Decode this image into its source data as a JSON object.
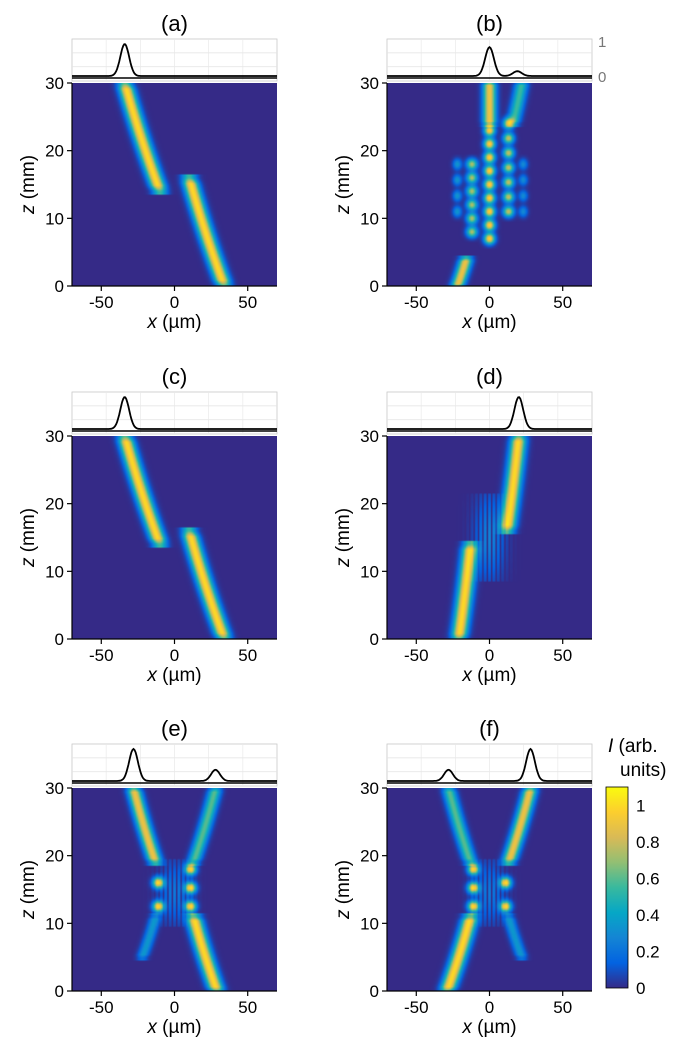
{
  "figure": {
    "xlabel_var": "x",
    "xlabel_unit": " (µm)",
    "ylabel_var": "z",
    "ylabel_unit": " (mm)",
    "profile_ticks": [
      "1",
      "0"
    ]
  },
  "colorbar": {
    "label_var": "I",
    "label_rest": " (arb.",
    "label_line2": "units)",
    "ticks": [
      "1",
      "0.8",
      "0.6",
      "0.4",
      "0.2",
      "0"
    ],
    "tick_values": [
      1,
      0.8,
      0.6,
      0.4,
      0.2,
      0
    ],
    "range": [
      0,
      1.1
    ],
    "colors": [
      "#352a87",
      "#0363e1",
      "#1485d4",
      "#06a7c6",
      "#38b99e",
      "#92bf73",
      "#d9ba56",
      "#fcce2e",
      "#f9fb0e"
    ]
  },
  "chart_data": [
    {
      "type": "heatmap",
      "title": "(a)",
      "xlabel": "x (µm)",
      "ylabel": "z (mm)",
      "xlim": [
        -70,
        70
      ],
      "ylim": [
        0,
        30
      ],
      "xticks": [
        -50,
        0,
        50
      ],
      "yticks": [
        0,
        10,
        20,
        30
      ],
      "beams": [
        {
          "x_top": -34,
          "z_top": 30,
          "x_bot": -10,
          "z_bot": 14,
          "width": 3.5,
          "amp": 1.0
        },
        {
          "x_top": 10,
          "z_top": 16,
          "x_bot": 34,
          "z_bot": 0,
          "width": 3.5,
          "amp": 1.0
        }
      ],
      "fringes": [],
      "top_profile": [
        {
          "x": -34,
          "amp": 1.0,
          "width": 3
        }
      ]
    },
    {
      "type": "heatmap",
      "title": "(b)",
      "xlabel": "x (µm)",
      "ylabel": "z (mm)",
      "xlim": [
        -70,
        70
      ],
      "ylim": [
        0,
        30
      ],
      "xticks": [
        -50,
        0,
        50
      ],
      "yticks": [
        0,
        10,
        20,
        30
      ],
      "beams": [
        {
          "x_top": 0,
          "z_top": 30,
          "x_bot": 0,
          "z_bot": 24,
          "width": 3,
          "amp": 0.9
        },
        {
          "x_top": 22,
          "z_top": 30,
          "x_bot": 16,
          "z_bot": 24,
          "width": 3,
          "amp": 0.55
        },
        {
          "x_top": -16,
          "z_top": 4,
          "x_bot": -22,
          "z_bot": 0,
          "width": 3,
          "amp": 0.9
        }
      ],
      "fringes": [
        {
          "x": 0,
          "z_from": 7,
          "z_to": 23,
          "n": 9,
          "width": 2.5,
          "amp": 1.0
        },
        {
          "x": 13,
          "z_from": 11,
          "z_to": 24,
          "n": 7,
          "width": 2.5,
          "amp": 0.8
        },
        {
          "x": -12,
          "z_from": 8,
          "z_to": 18,
          "n": 6,
          "width": 2.5,
          "amp": 0.75
        },
        {
          "x": -22,
          "z_from": 11,
          "z_to": 18,
          "n": 4,
          "width": 2.0,
          "amp": 0.35
        },
        {
          "x": 23,
          "z_from": 11,
          "z_to": 18,
          "n": 4,
          "width": 2.0,
          "amp": 0.3
        }
      ],
      "top_profile": [
        {
          "x": 0,
          "amp": 0.9,
          "width": 3
        },
        {
          "x": 19,
          "amp": 0.15,
          "width": 3
        }
      ]
    },
    {
      "type": "heatmap",
      "title": "(c)",
      "xlabel": "x (µm)",
      "ylabel": "z (mm)",
      "xlim": [
        -70,
        70
      ],
      "ylim": [
        0,
        30
      ],
      "xticks": [
        -50,
        0,
        50
      ],
      "yticks": [
        0,
        10,
        20,
        30
      ],
      "beams": [
        {
          "x_top": -34,
          "z_top": 30,
          "x_bot": -10,
          "z_bot": 14,
          "width": 3.5,
          "amp": 1.0
        },
        {
          "x_top": 10,
          "z_top": 16,
          "x_bot": 34,
          "z_bot": 0,
          "width": 3.5,
          "amp": 1.0
        }
      ],
      "fringes": [],
      "top_profile": [
        {
          "x": -34,
          "amp": 1.0,
          "width": 3
        }
      ]
    },
    {
      "type": "heatmap",
      "title": "(d)",
      "xlabel": "x (µm)",
      "ylabel": "z (mm)",
      "xlim": [
        -70,
        70
      ],
      "ylim": [
        0,
        30
      ],
      "xticks": [
        -50,
        0,
        50
      ],
      "yticks": [
        0,
        10,
        20,
        30
      ],
      "beams": [
        {
          "x_top": 20,
          "z_top": 30,
          "x_bot": 12,
          "z_bot": 16,
          "width": 3.5,
          "amp": 1.0
        },
        {
          "x_top": -13,
          "z_top": 14,
          "x_bot": -21,
          "z_bot": 0,
          "width": 3.5,
          "amp": 1.0
        }
      ],
      "fringes": [
        {
          "x": 0,
          "z_from": 10,
          "z_to": 20,
          "n": 6,
          "width": 1.6,
          "amp": 0.35,
          "horizontal": true
        }
      ],
      "top_profile": [
        {
          "x": 20,
          "amp": 1.0,
          "width": 3
        }
      ]
    },
    {
      "type": "heatmap",
      "title": "(e)",
      "xlabel": "x (µm)",
      "ylabel": "z (mm)",
      "xlim": [
        -70,
        70
      ],
      "ylim": [
        0,
        30
      ],
      "xticks": [
        -50,
        0,
        50
      ],
      "yticks": [
        0,
        10,
        20,
        30
      ],
      "beams": [
        {
          "x_top": -28,
          "z_top": 30,
          "x_bot": -13,
          "z_bot": 19,
          "width": 3.2,
          "amp": 0.9
        },
        {
          "x_top": 28,
          "z_top": 30,
          "x_bot": 13,
          "z_bot": 19,
          "width": 3.0,
          "amp": 0.6
        },
        {
          "x_top": 13,
          "z_top": 11,
          "x_bot": 29,
          "z_bot": 0,
          "width": 3.5,
          "amp": 1.0
        },
        {
          "x_top": -13,
          "z_top": 11,
          "x_bot": -22,
          "z_bot": 5,
          "width": 2.6,
          "amp": 0.35
        }
      ],
      "fringes": [
        {
          "x": -11,
          "z_from": 12.5,
          "z_to": 16,
          "n": 2,
          "width": 2.6,
          "amp": 1.0
        },
        {
          "x": 11,
          "z_from": 12.5,
          "z_to": 18,
          "n": 3,
          "width": 2.6,
          "amp": 1.0
        },
        {
          "x": 0,
          "z_from": 11,
          "z_to": 18,
          "n": 5,
          "width": 1.4,
          "amp": 0.3,
          "horizontal": true
        }
      ],
      "top_profile": [
        {
          "x": -28,
          "amp": 1.0,
          "width": 3
        },
        {
          "x": 28,
          "amp": 0.35,
          "width": 3
        }
      ]
    },
    {
      "type": "heatmap",
      "title": "(f)",
      "xlabel": "x (µm)",
      "ylabel": "z (mm)",
      "xlim": [
        -70,
        70
      ],
      "ylim": [
        0,
        30
      ],
      "xticks": [
        -50,
        0,
        50
      ],
      "yticks": [
        0,
        10,
        20,
        30
      ],
      "beams": [
        {
          "x_top": 28,
          "z_top": 30,
          "x_bot": 13,
          "z_bot": 19,
          "width": 3.2,
          "amp": 0.9
        },
        {
          "x_top": -28,
          "z_top": 30,
          "x_bot": -13,
          "z_bot": 19,
          "width": 3.0,
          "amp": 0.6
        },
        {
          "x_top": -13,
          "z_top": 11,
          "x_bot": -29,
          "z_bot": 0,
          "width": 3.5,
          "amp": 1.0
        },
        {
          "x_top": 13,
          "z_top": 11,
          "x_bot": 22,
          "z_bot": 5,
          "width": 2.6,
          "amp": 0.35
        }
      ],
      "fringes": [
        {
          "x": -11,
          "z_from": 12.5,
          "z_to": 18,
          "n": 3,
          "width": 2.6,
          "amp": 1.0
        },
        {
          "x": 11,
          "z_from": 12.5,
          "z_to": 16,
          "n": 2,
          "width": 2.6,
          "amp": 1.0
        },
        {
          "x": 0,
          "z_from": 11,
          "z_to": 18,
          "n": 5,
          "width": 1.4,
          "amp": 0.3,
          "horizontal": true
        }
      ],
      "top_profile": [
        {
          "x": -28,
          "amp": 0.35,
          "width": 3
        },
        {
          "x": 28,
          "amp": 1.0,
          "width": 3
        }
      ]
    }
  ]
}
